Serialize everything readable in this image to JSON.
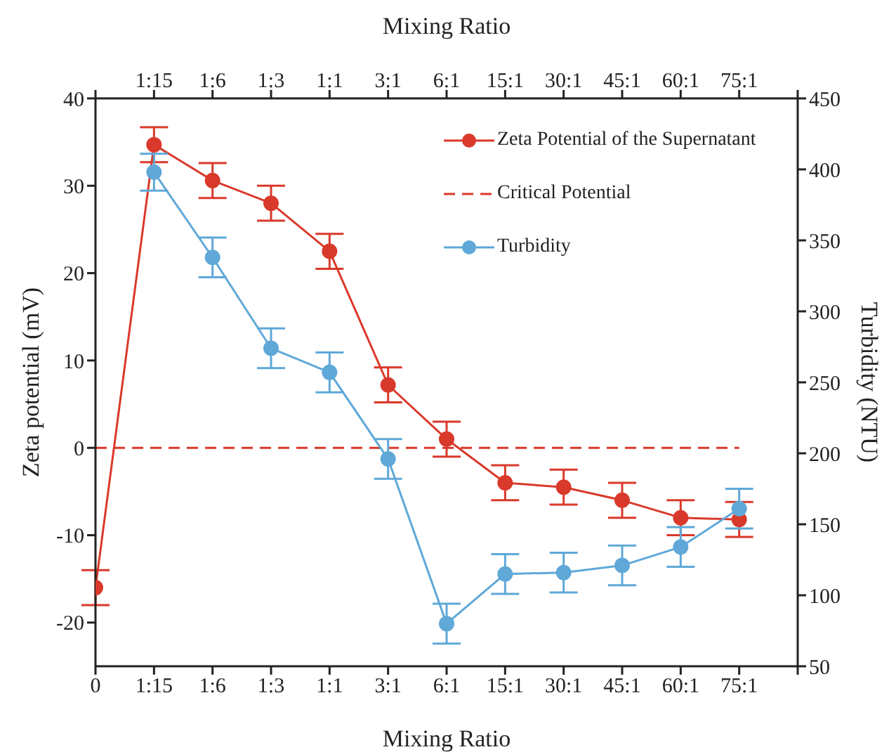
{
  "chart_data": {
    "type": "line",
    "xlabel": "Mixing Ratio",
    "x2label": "Mixing Ratio",
    "ylabel": "Zeta potential (mV)",
    "y2label": "Turbidity (NTU)",
    "categories": [
      "0",
      "1:15",
      "1:6",
      "1:3",
      "1:1",
      "3:1",
      "6:1",
      "15:1",
      "30:1",
      "45:1",
      "60:1",
      "75:1",
      null
    ],
    "series": [
      {
        "name": "Zeta Potential of the Supernatant",
        "color": "#d9392b",
        "values": [
          -16,
          34.7,
          30.6,
          28,
          22.5,
          7.2,
          1,
          -4,
          -4.5,
          -6,
          -8,
          -8.2,
          null
        ],
        "errors": [
          2,
          2,
          2,
          2,
          2,
          2,
          2,
          2,
          2,
          2,
          2,
          2,
          null
        ]
      },
      {
        "name": "Turbidity",
        "color": "#5fa8d8",
        "axis": "y2",
        "values": [
          null,
          398,
          338,
          274,
          257,
          196,
          80,
          115,
          116,
          121,
          134,
          161,
          null
        ],
        "errors": [
          null,
          13,
          14,
          14,
          14,
          14,
          14,
          14,
          14,
          14,
          14,
          14,
          null
        ]
      }
    ],
    "ylim": [
      -25,
      40
    ],
    "yticks": [
      -20,
      -10,
      0,
      10,
      20,
      30,
      40
    ],
    "y2lim": [
      50,
      450
    ],
    "y2ticks": [
      50,
      100,
      150,
      200,
      250,
      300,
      350,
      400,
      450
    ],
    "ref_lines": [
      {
        "axis": "y",
        "value": 0,
        "label": "Critical Potential",
        "color": "#d9392b",
        "line_style": "dashed"
      }
    ],
    "marker": "circle",
    "line_style": "solid",
    "grid": false,
    "legend": "top right"
  }
}
